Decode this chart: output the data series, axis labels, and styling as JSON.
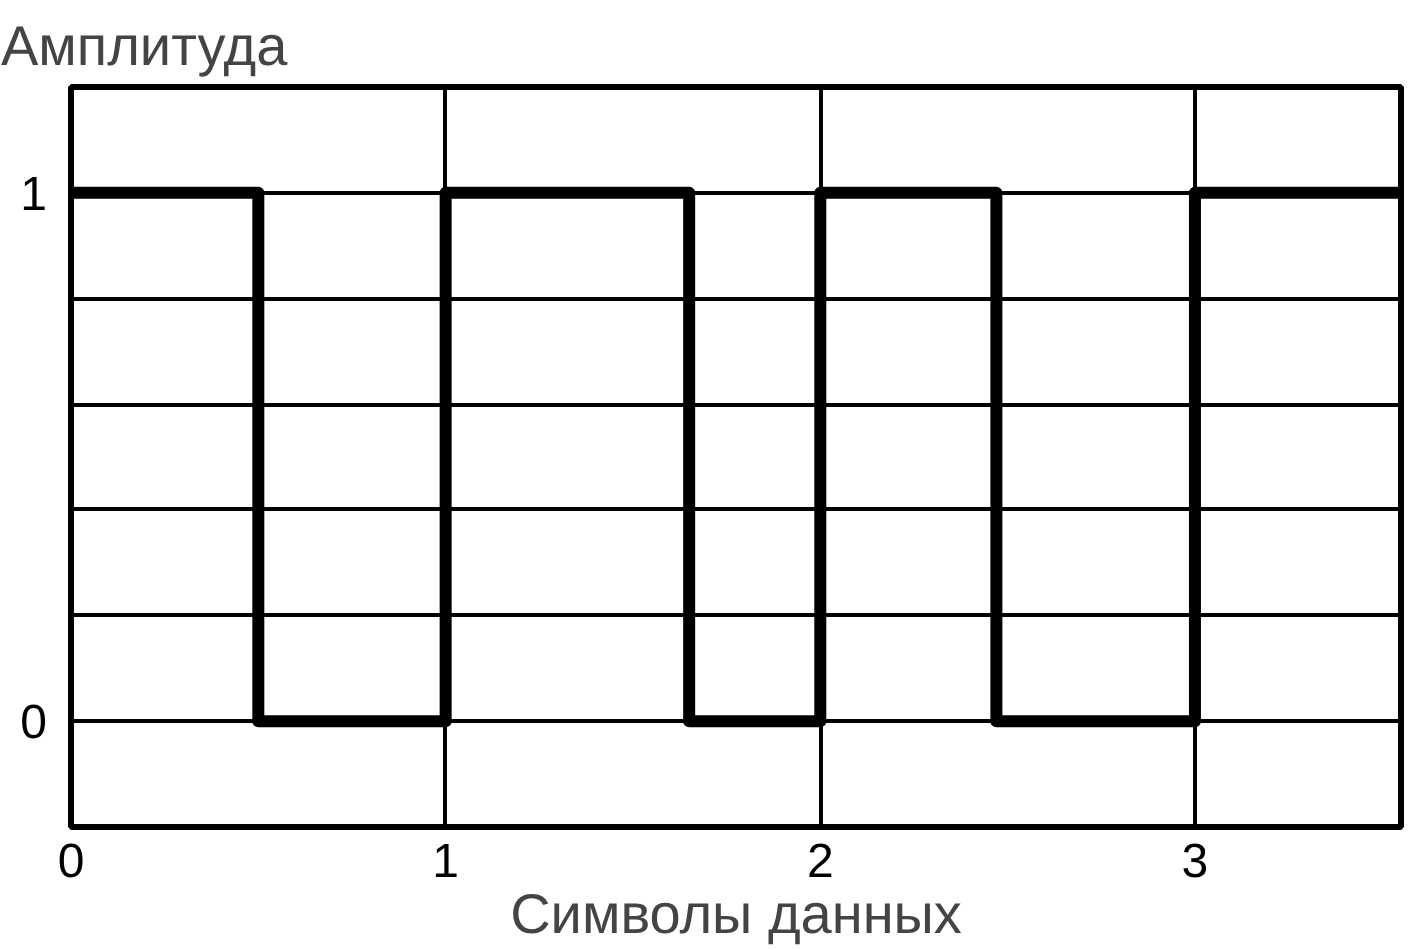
{
  "chart_data": {
    "type": "step",
    "xlabel": "Символы данных",
    "ylabel": "Амплитуда",
    "xlim": [
      0,
      3.55
    ],
    "ylim": [
      -0.2,
      1.2
    ],
    "xticks": [
      0,
      1,
      2,
      3
    ],
    "yticks": [
      0,
      {
        "value": 0.2,
        "label": null
      },
      {
        "value": 0.4,
        "label": null
      },
      {
        "value": 0.6,
        "label": null
      },
      {
        "value": 0.8,
        "label": null
      },
      1
    ],
    "grid": true,
    "marker": "none",
    "line_style": "solid",
    "series": [
      {
        "color": "#000000",
        "x": [
          0,
          0.5,
          1.0,
          1.65,
          2.0,
          2.47,
          3.0,
          3.55
        ],
        "values": [
          1,
          0,
          1,
          0,
          1,
          0,
          1,
          1
        ]
      }
    ]
  }
}
